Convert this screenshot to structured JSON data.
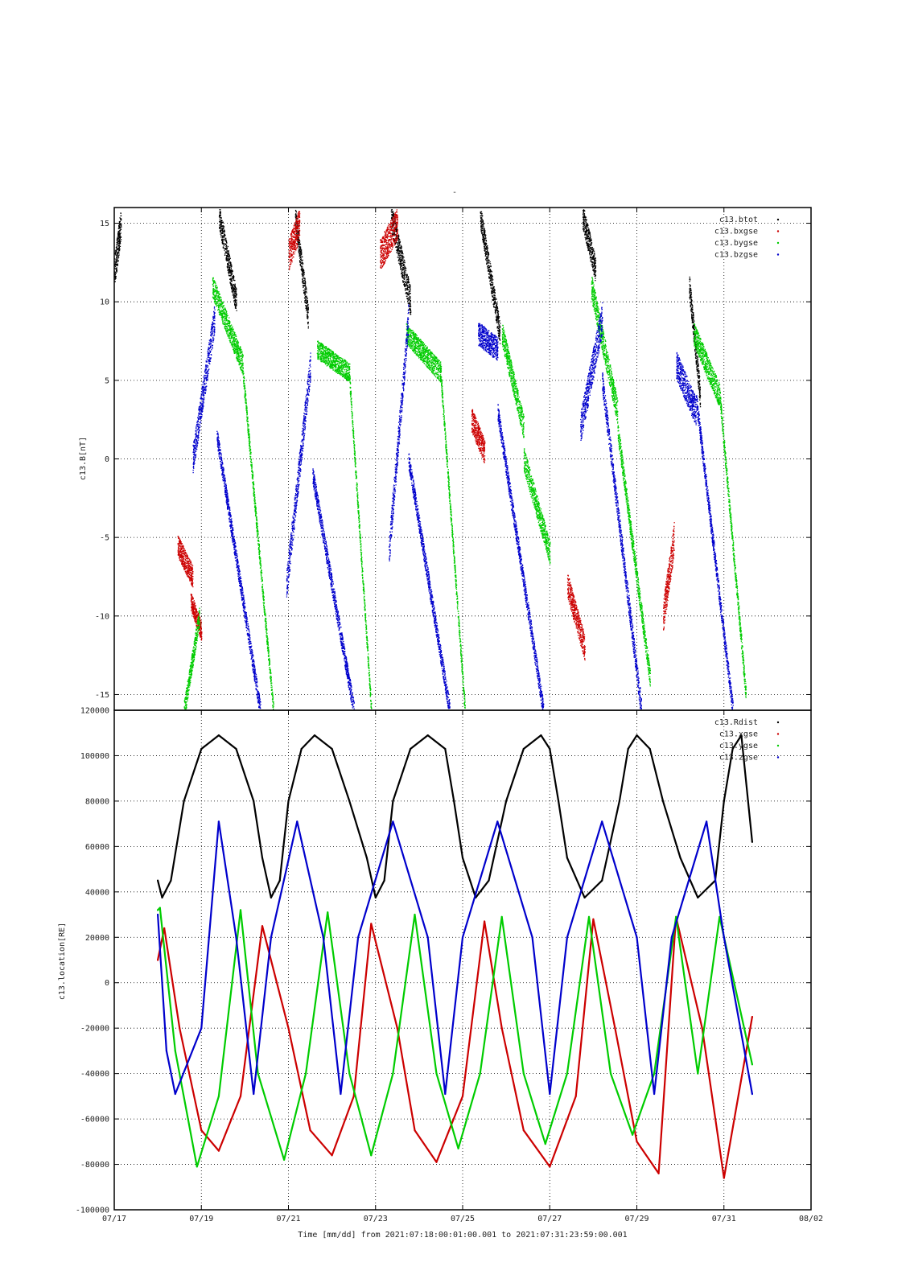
{
  "chart_title": "-",
  "xaxis": {
    "ticks": [
      "07/17",
      "07/19",
      "07/21",
      "07/23",
      "07/25",
      "07/27",
      "07/29",
      "07/31",
      "08/02"
    ],
    "label": "Time [mm/dd]  from 2021:07:18:00:01:00.001  to  2021:07:31:23:59:00.001"
  },
  "chart_data": [
    {
      "type": "scatter",
      "ylabel": "c13.B[nT]",
      "ylim": [
        -16,
        16
      ],
      "yticks": [
        15,
        10,
        5,
        0,
        -5,
        -10,
        -15
      ],
      "xlim": [
        0,
        16
      ],
      "grid": true,
      "legend_position": "top-right",
      "series": [
        {
          "name": "c13.btot",
          "color": "#000000",
          "segments": [
            {
              "x0": 0.0,
              "x1": 0.15,
              "y0": 12,
              "y1": 15,
              "jitter": 2.0
            },
            {
              "x0": 2.4,
              "x1": 2.8,
              "y0": 15.5,
              "y1": 10,
              "jitter": 1.6
            },
            {
              "x0": 4.15,
              "x1": 4.45,
              "y0": 15.5,
              "y1": 9,
              "jitter": 1.5
            },
            {
              "x0": 6.35,
              "x1": 6.8,
              "y0": 15.5,
              "y1": 10,
              "jitter": 1.8
            },
            {
              "x0": 8.4,
              "x1": 8.85,
              "y0": 15.5,
              "y1": 8,
              "jitter": 1.5
            },
            {
              "x0": 10.75,
              "x1": 11.05,
              "y0": 15.5,
              "y1": 12,
              "jitter": 1.6
            },
            {
              "x0": 13.2,
              "x1": 13.45,
              "y0": 11,
              "y1": 4,
              "jitter": 1.5
            }
          ]
        },
        {
          "name": "c13.bxgse",
          "color": "#cc0000",
          "segments": [
            {
              "x0": 1.45,
              "x1": 1.8,
              "y0": -5.5,
              "y1": -7.5,
              "jitter": 1.4
            },
            {
              "x0": 1.75,
              "x1": 2.0,
              "y0": -9,
              "y1": -11,
              "jitter": 1.2
            },
            {
              "x0": 4.0,
              "x1": 4.25,
              "y0": 13,
              "y1": 15,
              "jitter": 2.0
            },
            {
              "x0": 6.1,
              "x1": 6.5,
              "y0": 13,
              "y1": 15,
              "jitter": 2.0
            },
            {
              "x0": 8.2,
              "x1": 8.5,
              "y0": 2.5,
              "y1": 0.5,
              "jitter": 1.6
            },
            {
              "x0": 10.4,
              "x1": 10.8,
              "y0": -8,
              "y1": -12,
              "jitter": 1.6
            },
            {
              "x0": 12.6,
              "x1": 12.85,
              "y0": -10,
              "y1": -5,
              "jitter": 2.0
            }
          ]
        },
        {
          "name": "c13.bygse",
          "color": "#00cc00",
          "segments": [
            {
              "x0": 1.6,
              "x1": 1.95,
              "y0": -16,
              "y1": -10,
              "jitter": 1.2
            },
            {
              "x0": 2.25,
              "x1": 2.95,
              "y0": 11,
              "y1": 6,
              "jitter": 1.4
            },
            {
              "x0": 2.95,
              "x1": 3.65,
              "y0": 5.5,
              "y1": -16,
              "jitter": 0.9
            },
            {
              "x0": 4.65,
              "x1": 5.4,
              "y0": 7,
              "y1": 5.5,
              "jitter": 1.2
            },
            {
              "x0": 5.4,
              "x1": 5.9,
              "y0": 5,
              "y1": -16,
              "jitter": 0.9
            },
            {
              "x0": 6.7,
              "x1": 7.5,
              "y0": 8,
              "y1": 5.5,
              "jitter": 1.3
            },
            {
              "x0": 7.5,
              "x1": 8.05,
              "y0": 5,
              "y1": -16,
              "jitter": 0.9
            },
            {
              "x0": 8.9,
              "x1": 9.4,
              "y0": 8,
              "y1": 2,
              "jitter": 1.5
            },
            {
              "x0": 9.4,
              "x1": 10.0,
              "y0": 0,
              "y1": -6,
              "jitter": 1.5
            },
            {
              "x0": 10.95,
              "x1": 11.55,
              "y0": 11,
              "y1": 3,
              "jitter": 1.6
            },
            {
              "x0": 11.55,
              "x1": 12.3,
              "y0": 2,
              "y1": -14,
              "jitter": 1.2
            },
            {
              "x0": 13.3,
              "x1": 13.9,
              "y0": 8,
              "y1": 4,
              "jitter": 1.5
            },
            {
              "x0": 13.9,
              "x1": 14.5,
              "y0": 4,
              "y1": -15,
              "jitter": 1.0
            }
          ]
        },
        {
          "name": "c13.bzgse",
          "color": "#0000cc",
          "segments": [
            {
              "x0": 1.8,
              "x1": 2.3,
              "y0": 0,
              "y1": 9,
              "jitter": 1.8
            },
            {
              "x0": 2.35,
              "x1": 3.35,
              "y0": 1.5,
              "y1": -16,
              "jitter": 1.1
            },
            {
              "x0": 3.95,
              "x1": 4.5,
              "y0": -8,
              "y1": 6,
              "jitter": 1.8
            },
            {
              "x0": 4.55,
              "x1": 5.5,
              "y0": -1,
              "y1": -16,
              "jitter": 1.1
            },
            {
              "x0": 6.3,
              "x1": 6.75,
              "y0": -6,
              "y1": 9,
              "jitter": 1.8
            },
            {
              "x0": 6.75,
              "x1": 7.7,
              "y0": 0,
              "y1": -16,
              "jitter": 1.1
            },
            {
              "x0": 8.35,
              "x1": 8.8,
              "y0": 8,
              "y1": 7,
              "jitter": 1.5
            },
            {
              "x0": 8.8,
              "x1": 9.85,
              "y0": 3,
              "y1": -16,
              "jitter": 1.1
            },
            {
              "x0": 10.7,
              "x1": 11.2,
              "y0": 2,
              "y1": 9,
              "jitter": 2.0
            },
            {
              "x0": 11.2,
              "x1": 12.1,
              "y0": 5,
              "y1": -16,
              "jitter": 1.3
            },
            {
              "x0": 12.9,
              "x1": 13.35,
              "y0": 6,
              "y1": 3,
              "jitter": 1.8
            },
            {
              "x0": 13.35,
              "x1": 14.2,
              "y0": 4,
              "y1": -16,
              "jitter": 1.1
            }
          ]
        }
      ]
    },
    {
      "type": "line",
      "ylabel": "c13.location[RE]",
      "ylim": [
        -100000,
        120000
      ],
      "yticks": [
        120000,
        100000,
        80000,
        60000,
        40000,
        20000,
        0,
        -20000,
        -40000,
        -60000,
        -80000,
        -100000
      ],
      "xlim": [
        0,
        16
      ],
      "grid": true,
      "legend_position": "top-right",
      "series": [
        {
          "name": "c13.Rdist",
          "color": "#000000",
          "x": [
            1.0,
            1.1,
            1.3,
            1.6,
            2.0,
            2.4,
            2.8,
            3.2,
            3.4,
            3.6,
            3.8,
            4.0,
            4.3,
            4.6,
            5.0,
            5.4,
            5.8,
            6.0,
            6.2,
            6.4,
            6.8,
            7.2,
            7.6,
            7.8,
            8.0,
            8.3,
            8.6,
            9.0,
            9.4,
            9.8,
            10.0,
            10.2,
            10.4,
            10.8,
            11.2,
            11.6,
            11.8,
            12.0,
            12.3,
            12.6,
            13.0,
            13.4,
            13.8,
            14.0,
            14.2,
            14.4,
            14.65
          ],
          "values": [
            45000,
            37500,
            45000,
            80000,
            103000,
            109000,
            103000,
            80000,
            55000,
            37500,
            45000,
            80000,
            103000,
            109000,
            103000,
            80000,
            55000,
            37500,
            45000,
            80000,
            103000,
            109000,
            103000,
            80000,
            55000,
            37500,
            45000,
            80000,
            103000,
            109000,
            103000,
            80000,
            55000,
            37500,
            45000,
            80000,
            103000,
            109000,
            103000,
            80000,
            55000,
            37500,
            45000,
            80000,
            103000,
            109000,
            62000
          ]
        },
        {
          "name": "c13.xgse",
          "color": "#cc0000",
          "x": [
            1.0,
            1.15,
            1.5,
            2.0,
            2.4,
            2.9,
            3.4,
            4.0,
            4.5,
            5.0,
            5.5,
            5.9,
            6.5,
            6.9,
            7.4,
            8.0,
            8.5,
            8.9,
            9.4,
            10.0,
            10.6,
            11.0,
            11.5,
            12.0,
            12.5,
            12.9,
            13.5,
            14.0,
            14.65
          ],
          "values": [
            10000,
            24000,
            -20000,
            -65000,
            -74000,
            -50000,
            25000,
            -20000,
            -65000,
            -76000,
            -50000,
            26000,
            -20000,
            -65000,
            -79000,
            -50000,
            27000,
            -20000,
            -65000,
            -81000,
            -50000,
            28000,
            -20000,
            -70000,
            -84000,
            29000,
            -20000,
            -86000,
            -15000
          ]
        },
        {
          "name": "c13.ygse",
          "color": "#00cc00",
          "x": [
            1.0,
            1.05,
            1.4,
            1.9,
            2.4,
            2.9,
            3.3,
            3.9,
            4.4,
            4.9,
            5.4,
            5.9,
            6.4,
            6.9,
            7.4,
            7.9,
            8.4,
            8.9,
            9.4,
            9.9,
            10.4,
            10.9,
            11.4,
            11.9,
            12.4,
            12.9,
            13.4,
            13.9,
            14.65
          ],
          "values": [
            32000,
            33000,
            -30000,
            -81000,
            -50000,
            32000,
            -40000,
            -78000,
            -40000,
            31000,
            -40000,
            -76000,
            -40000,
            30000,
            -40000,
            -73000,
            -40000,
            29000,
            -40000,
            -71000,
            -40000,
            29000,
            -40000,
            -67000,
            -40000,
            29000,
            -40000,
            29000,
            -36000
          ]
        },
        {
          "name": "c13.zgse",
          "color": "#0000cc",
          "x": [
            1.0,
            1.2,
            1.4,
            2.0,
            2.4,
            2.8,
            3.2,
            3.6,
            4.2,
            4.8,
            5.2,
            5.6,
            6.4,
            7.2,
            7.6,
            8.0,
            8.8,
            9.6,
            10.0,
            10.4,
            11.2,
            12.0,
            12.4,
            12.8,
            13.6,
            14.0,
            14.65
          ],
          "values": [
            30000,
            -30000,
            -49000,
            -20000,
            71000,
            20000,
            -49000,
            20000,
            71000,
            20000,
            -49000,
            20000,
            71000,
            20000,
            -49000,
            20000,
            71000,
            20000,
            -49000,
            20000,
            71000,
            20000,
            -49000,
            20000,
            71000,
            20000,
            -49000
          ]
        }
      ]
    }
  ]
}
